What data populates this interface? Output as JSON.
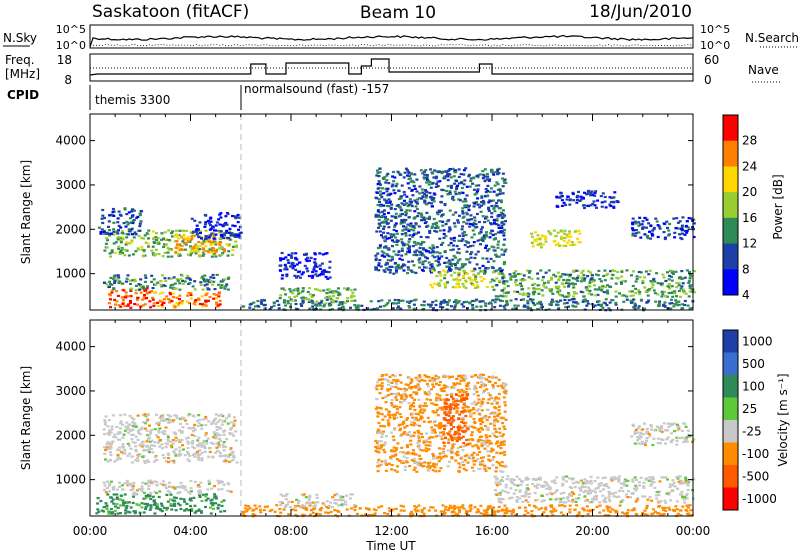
{
  "header": {
    "station": "Saskatoon (fitACF)",
    "beam": "Beam 10",
    "date": "18/Jun/2010"
  },
  "panels": {
    "nsky_label": "N.Sky",
    "nsearch_label": "N.Search",
    "nsky_ticks": [
      "10^5",
      "10^0"
    ],
    "nsearch_ticks": [
      "10^5",
      "10^0"
    ],
    "freq_label_1": "Freq.",
    "freq_label_2": "[MHz]",
    "freq_ticks": [
      "18",
      "8"
    ],
    "nave_label": "Nave",
    "nave_ticks": [
      "60",
      "0"
    ],
    "cpid_label": "CPID",
    "cpid_segments": [
      {
        "text": "themis 3300"
      },
      {
        "text": "normalsound (fast) -157"
      }
    ]
  },
  "chart_data": [
    {
      "type": "heatmap",
      "quantity": "Power",
      "ylabel": "Slant Range [km]",
      "xlabel": "Time UT",
      "colorbar_label": "Power [dB]",
      "colorbar_ticks": [
        "28",
        "24",
        "20",
        "16",
        "12",
        "8",
        "4"
      ],
      "colorbar_colors": [
        "#ff0000",
        "#ff7f00",
        "#ffd700",
        "#9acd32",
        "#2e8b57",
        "#1f3fa8",
        "#0000ff"
      ],
      "xticks": [
        "00:00",
        "04:00",
        "08:00",
        "12:00",
        "16:00",
        "20:00",
        "00:00"
      ],
      "yticks": [
        "1000",
        "2000",
        "3000",
        "4000"
      ],
      "xlim": [
        0,
        24
      ],
      "ylim": [
        180,
        4600
      ],
      "regions": [
        {
          "t0": 0.7,
          "t1": 2.5,
          "r0": 250,
          "r1": 700,
          "value": 26
        },
        {
          "t0": 2.5,
          "t1": 5.3,
          "r0": 250,
          "r1": 600,
          "value": 24
        },
        {
          "t0": 0.5,
          "t1": 5.6,
          "r0": 650,
          "r1": 1000,
          "value": 12
        },
        {
          "t0": 0.5,
          "t1": 5.8,
          "r0": 1400,
          "r1": 2000,
          "value": 15
        },
        {
          "t0": 3.3,
          "t1": 5.4,
          "r0": 1500,
          "r1": 1900,
          "value": 22
        },
        {
          "t0": 0.3,
          "t1": 2.0,
          "r0": 1900,
          "r1": 2500,
          "value": 8
        },
        {
          "t0": 4.0,
          "t1": 6.0,
          "r0": 1800,
          "r1": 2400,
          "value": 6
        },
        {
          "t0": 6.0,
          "t1": 24.0,
          "r0": 200,
          "r1": 450,
          "value": 10
        },
        {
          "t0": 7.5,
          "t1": 10.5,
          "r0": 350,
          "r1": 700,
          "value": 14
        },
        {
          "t0": 7.5,
          "t1": 9.5,
          "r0": 900,
          "r1": 1500,
          "value": 6
        },
        {
          "t0": 11.3,
          "t1": 16.5,
          "r0": 1000,
          "r1": 3400,
          "value": 9
        },
        {
          "t0": 13.5,
          "t1": 16.0,
          "r0": 700,
          "r1": 1100,
          "value": 17
        },
        {
          "t0": 16.0,
          "t1": 24.0,
          "r0": 500,
          "r1": 1100,
          "value": 13
        },
        {
          "t0": 21.5,
          "t1": 24.0,
          "r0": 1800,
          "r1": 2300,
          "value": 7
        },
        {
          "t0": 17.5,
          "t1": 19.5,
          "r0": 1600,
          "r1": 2000,
          "value": 18
        },
        {
          "t0": 18.5,
          "t1": 21.0,
          "r0": 2500,
          "r1": 2900,
          "value": 6
        }
      ]
    },
    {
      "type": "heatmap",
      "quantity": "Velocity",
      "ylabel": "Slant Range [km]",
      "xlabel": "Time UT",
      "colorbar_label": "Velocity [m s⁻¹]",
      "colorbar_ticks": [
        "1000",
        "500",
        "100",
        "25",
        "-25",
        "-100",
        "-500",
        "-1000"
      ],
      "colorbar_colors": [
        "#1f3fa8",
        "#3a6fd0",
        "#2e8b57",
        "#5cc83a",
        "#c8c8c8",
        "#ff8c00",
        "#ff5a00",
        "#ff0000"
      ],
      "xticks": [
        "00:00",
        "04:00",
        "08:00",
        "12:00",
        "16:00",
        "20:00",
        "00:00"
      ],
      "yticks": [
        "1000",
        "2000",
        "3000",
        "4000"
      ],
      "xlim": [
        0,
        24
      ],
      "ylim": [
        180,
        4600
      ],
      "regions": [
        {
          "t0": 0.2,
          "t1": 5.3,
          "r0": 250,
          "r1": 700,
          "value": 80
        },
        {
          "t0": 0.5,
          "t1": 5.6,
          "r0": 700,
          "r1": 1000,
          "value": 0
        },
        {
          "t0": 0.5,
          "t1": 5.8,
          "r0": 1400,
          "r1": 2500,
          "value": 0
        },
        {
          "t0": 6.0,
          "t1": 24.0,
          "r0": 200,
          "r1": 450,
          "value": -60
        },
        {
          "t0": 7.5,
          "t1": 10.5,
          "r0": 400,
          "r1": 700,
          "value": 0
        },
        {
          "t0": 11.3,
          "t1": 16.5,
          "r0": 1200,
          "r1": 3400,
          "value": -40
        },
        {
          "t0": 16.0,
          "t1": 24.0,
          "r0": 500,
          "r1": 1100,
          "value": 0
        },
        {
          "t0": 21.5,
          "t1": 24.0,
          "r0": 1800,
          "r1": 2300,
          "value": 0
        },
        {
          "t0": 14.0,
          "t1": 15.0,
          "r0": 1800,
          "r1": 3000,
          "value": -300
        }
      ]
    }
  ]
}
